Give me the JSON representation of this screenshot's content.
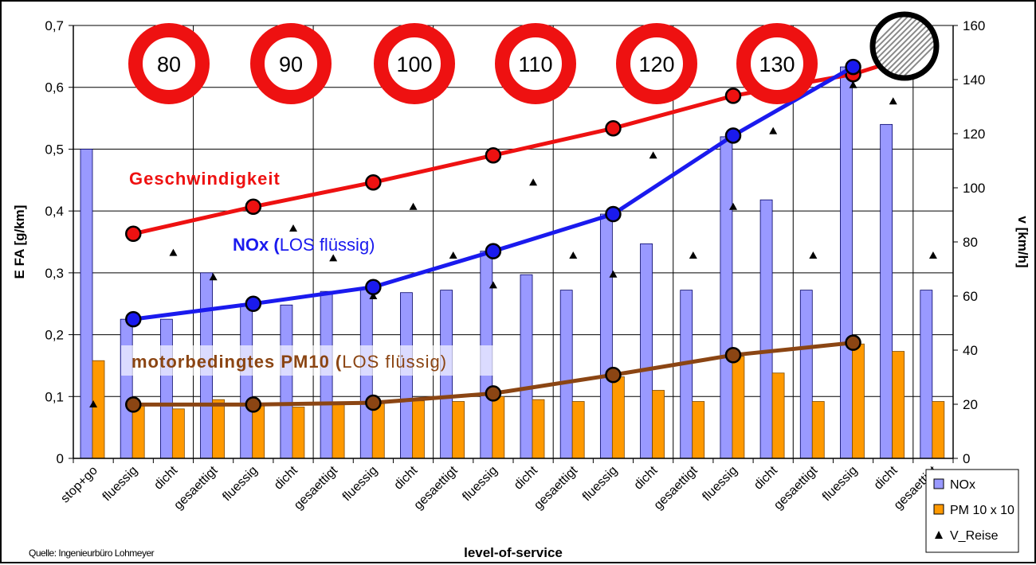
{
  "chart_data": {
    "type": "bar",
    "xlabel": "level-of-service",
    "ylabel_left": "E FA [g/km]",
    "ylabel_right": "v [km/h]",
    "ylim_left": [
      0,
      0.7
    ],
    "ylim_right": [
      0,
      160
    ],
    "yticks_left": [
      "0",
      "0,1",
      "0,2",
      "0,3",
      "0,4",
      "0,5",
      "0,6",
      "0,7"
    ],
    "yticks_right": [
      "0",
      "20",
      "40",
      "60",
      "80",
      "100",
      "120",
      "140",
      "160"
    ],
    "categories": [
      "stop+go",
      "fluessig",
      "dicht",
      "gesaettigt",
      "fluessig",
      "dicht",
      "gesaettigt",
      "fluessig",
      "dicht",
      "gesaettigt",
      "fluessig",
      "dicht",
      "gesaettigt",
      "fluessig",
      "dicht",
      "gesaettigt",
      "fluessig",
      "dicht",
      "gesaettigt",
      "fluessig",
      "dicht",
      "gesaettigt"
    ],
    "series": [
      {
        "name": "NOx",
        "kind": "bar",
        "axis": "left",
        "color": "#9999ff",
        "values": [
          0.5,
          0.225,
          0.225,
          0.3,
          0.25,
          0.248,
          0.27,
          0.275,
          0.268,
          0.272,
          0.335,
          0.297,
          0.272,
          0.395,
          0.347,
          0.272,
          0.52,
          0.418,
          0.272,
          0.633,
          0.54,
          0.272
        ]
      },
      {
        "name": "PM 10 x 10",
        "kind": "bar",
        "axis": "left",
        "color": "#ff9900",
        "values": [
          0.158,
          0.085,
          0.08,
          0.095,
          0.085,
          0.083,
          0.09,
          0.09,
          0.093,
          0.092,
          0.1,
          0.095,
          0.092,
          0.132,
          0.11,
          0.092,
          0.165,
          0.138,
          0.092,
          0.185,
          0.173,
          0.092
        ]
      },
      {
        "name": "V_Reise",
        "kind": "marker",
        "axis": "right",
        "color": "#000000",
        "values": [
          20,
          null,
          76,
          67,
          58,
          85,
          74,
          60,
          93,
          75,
          64,
          102,
          75,
          68,
          112,
          75,
          93,
          121,
          75,
          138,
          132,
          75
        ]
      }
    ],
    "overlay_lines": [
      {
        "label_bold": "Geschwindigkeit",
        "label_rest": "",
        "axis": "right",
        "color": "#ee1111",
        "points": [
          [
            1.5,
            83
          ],
          [
            4.5,
            93
          ],
          [
            7.5,
            102
          ],
          [
            10.5,
            112
          ],
          [
            13.5,
            122
          ],
          [
            16.5,
            134
          ],
          [
            19.5,
            142
          ],
          [
            20.8,
            148
          ]
        ]
      },
      {
        "label_bold": "NOx (",
        "label_rest": "LOS flüssig)",
        "axis": "left",
        "color": "#1a1aee",
        "points": [
          [
            1.5,
            0.225
          ],
          [
            4.5,
            0.25
          ],
          [
            7.5,
            0.277
          ],
          [
            10.5,
            0.335
          ],
          [
            13.5,
            0.395
          ],
          [
            16.5,
            0.522
          ],
          [
            19.5,
            0.633
          ]
        ]
      },
      {
        "label_bold": "motorbedingtes PM10 (",
        "label_rest": "LOS flüssig)",
        "axis": "left",
        "color": "#8b4513",
        "points": [
          [
            1.5,
            0.087
          ],
          [
            4.5,
            0.087
          ],
          [
            7.5,
            0.09
          ],
          [
            10.5,
            0.105
          ],
          [
            13.5,
            0.135
          ],
          [
            16.5,
            0.167
          ],
          [
            19.5,
            0.187
          ]
        ]
      }
    ],
    "speed_signs": [
      "80",
      "90",
      "100",
      "110",
      "120",
      "130"
    ],
    "legend": [
      "NOx",
      "PM 10 x 10",
      "V_Reise"
    ],
    "source": "Quelle: Ingenieurbüro Lohmeyer",
    "grid": true,
    "legend_position": "bottom-right"
  }
}
